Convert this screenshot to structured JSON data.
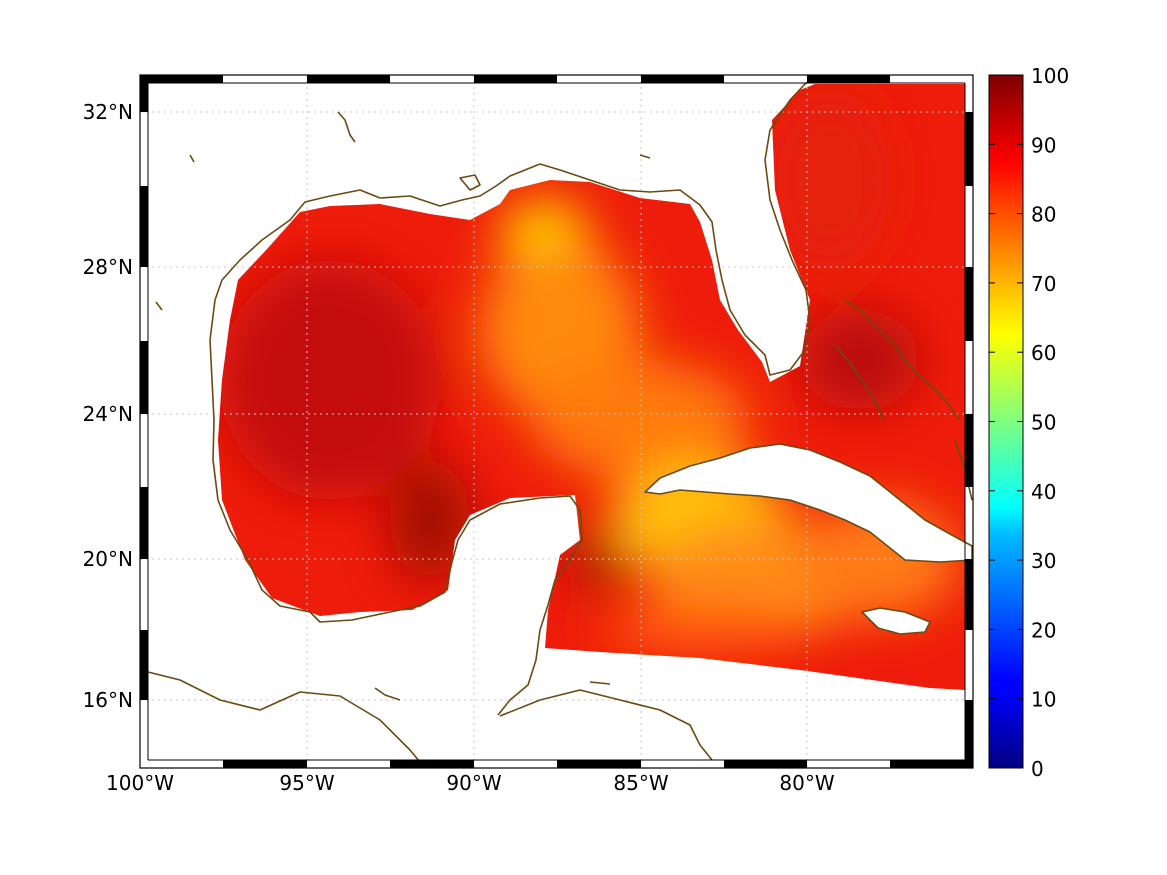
{
  "map": {
    "lon_labels": [
      "100°W",
      "95°W",
      "90°W",
      "85°W",
      "80°W"
    ],
    "lat_labels": [
      "32°N",
      "28°N",
      "24°N",
      "20°N",
      "16°N"
    ],
    "lon_range": [
      -100,
      -75
    ],
    "lat_range": [
      14.3,
      33.0
    ],
    "colormap": "jet",
    "coastline_color": "#6b4a12",
    "grid": true
  },
  "colorbar": {
    "min": 0,
    "max": 100,
    "ticks": [
      "0",
      "10",
      "20",
      "30",
      "40",
      "50",
      "60",
      "70",
      "80",
      "90",
      "100"
    ]
  }
}
